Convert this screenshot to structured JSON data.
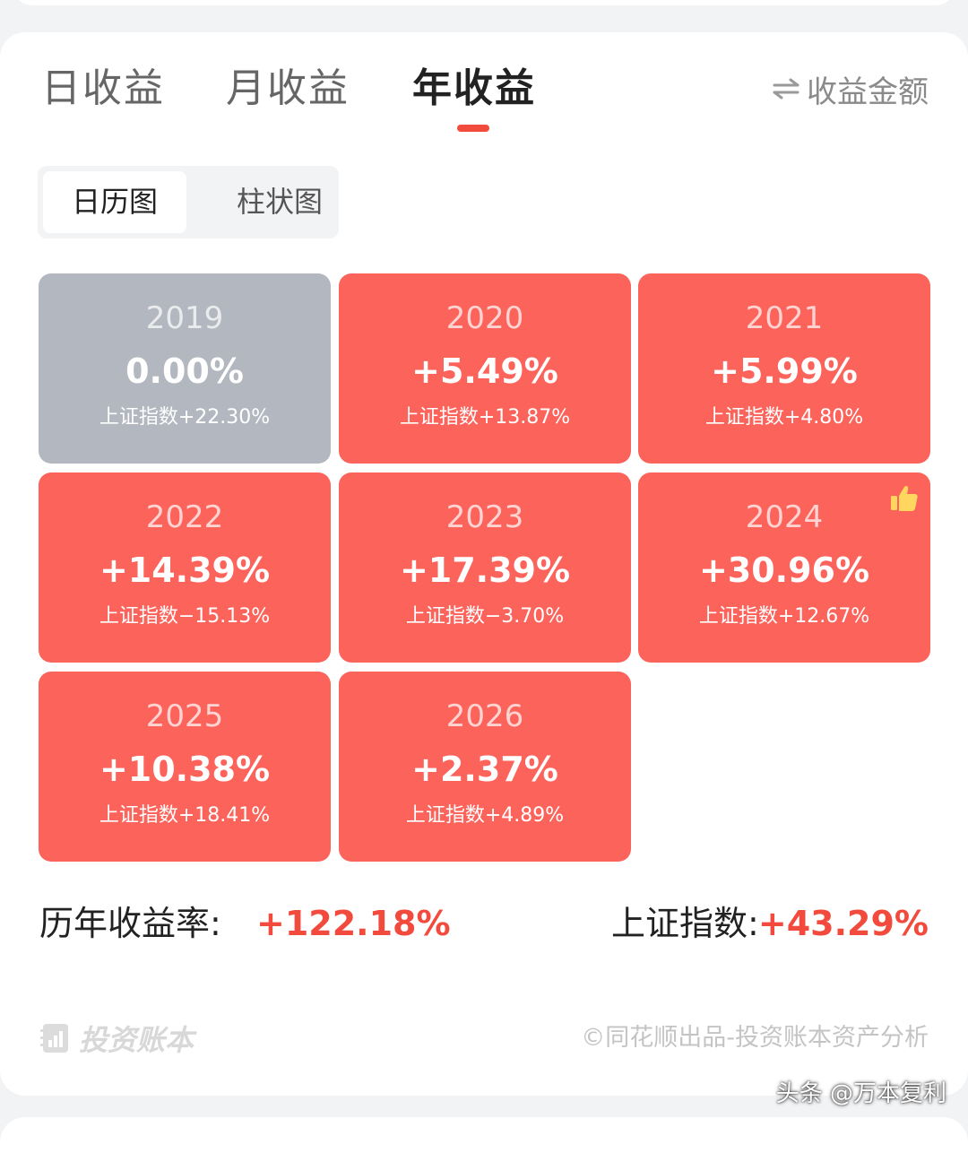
{
  "tabs": [
    {
      "label": "日收益",
      "active": false
    },
    {
      "label": "月收益",
      "active": false
    },
    {
      "label": "年收益",
      "active": true
    }
  ],
  "switch_label": "收益金额",
  "segment": {
    "calendar": "日历图",
    "bar": "柱状图"
  },
  "years": [
    {
      "year": "2019",
      "return": "0.00%",
      "index": "上证指数+22.30%"
    },
    {
      "year": "2020",
      "return": "+5.49%",
      "index": "上证指数+13.87%"
    },
    {
      "year": "2021",
      "return": "+5.99%",
      "index": "上证指数+4.80%"
    },
    {
      "year": "2022",
      "return": "+14.39%",
      "index": "上证指数−15.13%"
    },
    {
      "year": "2023",
      "return": "+17.39%",
      "index": "上证指数−3.70%"
    },
    {
      "year": "2024",
      "return": "+30.96%",
      "index": "上证指数+12.67%"
    },
    {
      "year": "2025",
      "return": "+10.38%",
      "index": "上证指数+18.41%"
    },
    {
      "year": "2026",
      "return": "+2.37%",
      "index": "上证指数+4.89%"
    }
  ],
  "totals": {
    "cumulative_label": "历年收益率:",
    "cumulative_value": "+122.18%",
    "index_label": "上证指数:",
    "index_value": "+43.29%"
  },
  "footer": {
    "brand": "投资账本",
    "credit": "©同花顺出品-投资账本资产分析",
    "watermark": "头条 @万本复利"
  },
  "colors": {
    "positive_tile": "#fc635b",
    "neutral_tile": "#b3b7bf",
    "accent": "#f24a3d"
  }
}
